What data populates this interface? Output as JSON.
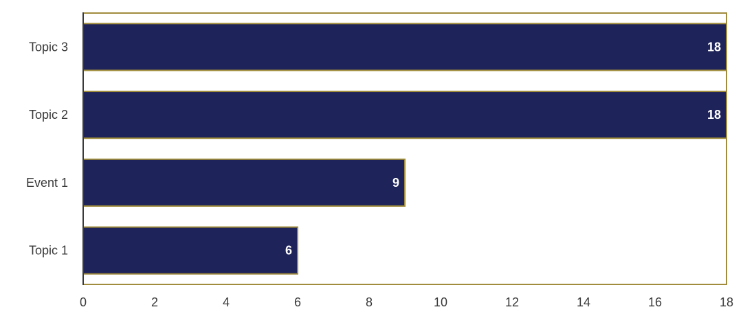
{
  "chart_data": {
    "type": "bar",
    "orientation": "horizontal",
    "categories": [
      "Topic 3",
      "Topic 2",
      "Event 1",
      "Topic 1"
    ],
    "values": [
      18,
      18,
      9,
      6
    ],
    "title": "",
    "xlabel": "",
    "ylabel": "",
    "xlim": [
      0,
      18
    ],
    "xticks": [
      "0",
      "2",
      "4",
      "6",
      "8",
      "10",
      "12",
      "14",
      "16",
      "18"
    ],
    "grid": false,
    "legend": "none",
    "data_labels": true,
    "colors": {
      "bar_fill": "#1e2359",
      "bar_stroke": "#a08c3c",
      "frame": "#a08c3c",
      "axis": "#3a3a3a",
      "data_label_text": "#ffffff",
      "tick_text": "#3a3a3a"
    }
  }
}
